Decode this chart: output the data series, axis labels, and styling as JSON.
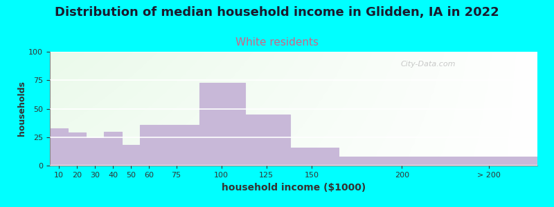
{
  "title": "Distribution of median household income in Glidden, IA in 2022",
  "subtitle": "White residents",
  "xlabel": "household income ($1000)",
  "ylabel": "households",
  "background_outer": "#00FFFF",
  "bar_color": "#C8B8D8",
  "title_fontsize": 13,
  "subtitle_fontsize": 11,
  "subtitle_color": "#CC6688",
  "xlabel_fontsize": 10,
  "ylabel_fontsize": 9,
  "ylim": [
    0,
    100
  ],
  "yticks": [
    0,
    25,
    50,
    75,
    100
  ],
  "categories": [
    "10",
    "20",
    "30",
    "40",
    "50",
    "60",
    "75",
    "100",
    "125",
    "150",
    "200",
    "> 200"
  ],
  "values": [
    33,
    29,
    24,
    30,
    18,
    36,
    36,
    73,
    45,
    16,
    8,
    8
  ],
  "bar_lefts": [
    5,
    15,
    25,
    35,
    45,
    55,
    67,
    88,
    113,
    138,
    165,
    220
  ],
  "bar_rights": [
    15,
    25,
    35,
    45,
    55,
    67,
    88,
    113,
    138,
    165,
    220,
    275
  ],
  "xtick_positions": [
    10,
    20,
    30,
    40,
    50,
    60,
    75,
    100,
    125,
    150,
    200,
    248
  ],
  "watermark": "City-Data.com",
  "grid_color": "#FFFFFF",
  "grid_linewidth": 1.2,
  "xlim": [
    5,
    275
  ]
}
